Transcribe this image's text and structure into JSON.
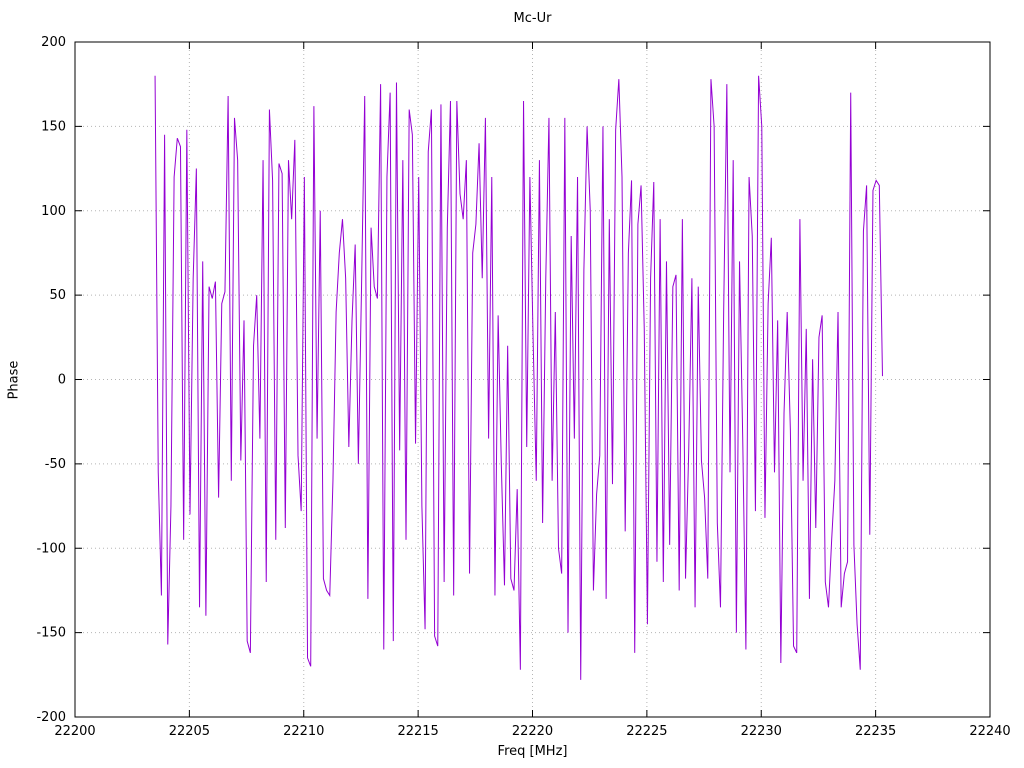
{
  "chart_data": {
    "type": "line",
    "title": "Mc-Ur",
    "xlabel": "Freq [MHz]",
    "ylabel": "Phase",
    "xlim": [
      22200,
      22240
    ],
    "ylim": [
      -200,
      200
    ],
    "xticks": [
      22200,
      22205,
      22210,
      22215,
      22220,
      22225,
      22230,
      22235,
      22240
    ],
    "yticks": [
      -200,
      -150,
      -100,
      -50,
      0,
      50,
      100,
      150,
      200
    ],
    "grid": true,
    "legend_position": "none",
    "line_color": "#9400d3",
    "grid_color": "#b5b5b5",
    "border_color": "#000000",
    "series": [
      {
        "name": "phase",
        "x_start": 22203.5,
        "x_end": 22235.3,
        "values": [
          180,
          -55,
          -128,
          145,
          -157,
          -75,
          120,
          143,
          138,
          -95,
          148,
          -80,
          60,
          125,
          -135,
          70,
          -140,
          55,
          48,
          58,
          -70,
          45,
          52,
          168,
          -60,
          155,
          130,
          -48,
          35,
          -155,
          -162,
          20,
          50,
          -35,
          130,
          -120,
          160,
          118,
          -95,
          128,
          122,
          -88,
          130,
          95,
          142,
          -45,
          -78,
          120,
          -165,
          -170,
          162,
          -35,
          100,
          -118,
          -125,
          -128,
          -60,
          40,
          75,
          95,
          60,
          -40,
          35,
          80,
          -50,
          55,
          168,
          -130,
          90,
          55,
          48,
          175,
          -160,
          120,
          170,
          -155,
          176,
          -42,
          130,
          -95,
          160,
          145,
          -38,
          120,
          -75,
          -148,
          135,
          160,
          -152,
          -158,
          163,
          -120,
          90,
          165,
          -128,
          165,
          110,
          95,
          130,
          -115,
          75,
          92,
          140,
          60,
          155,
          -35,
          120,
          -128,
          38,
          -50,
          -122,
          20,
          -118,
          -125,
          -65,
          -172,
          165,
          -40,
          120,
          25,
          -60,
          130,
          -85,
          60,
          155,
          -60,
          40,
          -100,
          -115,
          155,
          -150,
          85,
          -35,
          120,
          -178,
          65,
          150,
          100,
          -125,
          -68,
          -45,
          150,
          -130,
          95,
          -62,
          148,
          178,
          120,
          -90,
          75,
          118,
          -162,
          92,
          115,
          30,
          -145,
          60,
          117,
          -108,
          95,
          -120,
          70,
          -98,
          55,
          62,
          -125,
          95,
          -118,
          -42,
          60,
          -135,
          55,
          -48,
          -70,
          -118,
          178,
          150,
          -85,
          -135,
          40,
          175,
          -55,
          130,
          -150,
          70,
          -35,
          -160,
          120,
          85,
          -78,
          180,
          150,
          -82,
          45,
          84,
          -55,
          35,
          -168,
          -20,
          40,
          -30,
          -158,
          -162,
          95,
          -60,
          30,
          -130,
          12,
          -88,
          25,
          38,
          -120,
          -135,
          -95,
          -60,
          40,
          -135,
          -115,
          -108,
          170,
          -98,
          -145,
          -172,
          88,
          115,
          -92,
          112,
          118,
          115,
          2
        ]
      }
    ]
  }
}
